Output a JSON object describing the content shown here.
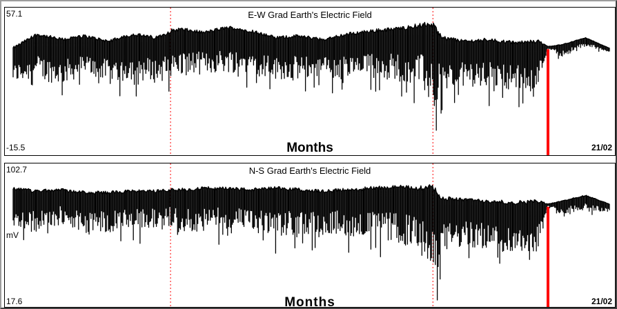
{
  "chart_data": [
    {
      "type": "line",
      "title": "E-W Grad Earth's Electric Field",
      "xlabel": "Months",
      "ylabel": "",
      "ylim": [
        -15.5,
        57.1
      ],
      "ymax_label": "57.1",
      "ymin_label": "-15.5",
      "date_label": "21/02",
      "month_dividers": [
        0.264,
        0.704
      ],
      "highlight": 0.897,
      "colors": {
        "line": "#000000",
        "divider": "#ff0000",
        "highlight": "#ff0000"
      },
      "x": [
        0.0,
        0.04,
        0.08,
        0.12,
        0.16,
        0.2,
        0.24,
        0.264,
        0.28,
        0.32,
        0.36,
        0.4,
        0.44,
        0.48,
        0.52,
        0.56,
        0.6,
        0.64,
        0.68,
        0.7,
        0.704,
        0.72,
        0.76,
        0.8,
        0.84,
        0.88,
        0.897,
        0.92,
        0.96,
        1.0
      ],
      "series": [
        {
          "upper": [
            40,
            48,
            45,
            47,
            44,
            48,
            46,
            50,
            51,
            49,
            52,
            50,
            46,
            47,
            45,
            48,
            50,
            51,
            53,
            54,
            53,
            46,
            44,
            45,
            43,
            44,
            41,
            42,
            46,
            40
          ]
        },
        {
          "lower": [
            20,
            22,
            19,
            24,
            21,
            22,
            20,
            22,
            24,
            25,
            26,
            26,
            22,
            22,
            24,
            21,
            22,
            22,
            19,
            8,
            3,
            14,
            18,
            17,
            16,
            17,
            40,
            35,
            41,
            38
          ]
        }
      ]
    },
    {
      "type": "line",
      "title": "N-S Grad Earth's Electric Field",
      "xlabel": "Months",
      "ylabel": "mV",
      "ylim": [
        17.6,
        102.7
      ],
      "ymax_label": "102.7",
      "ymin_label": "17.6",
      "date_label": "21/02",
      "month_dividers": [
        0.264,
        0.704
      ],
      "highlight": 0.897,
      "colors": {
        "line": "#000000",
        "divider": "#ff0000",
        "highlight": "#ff0000"
      },
      "x": [
        0.0,
        0.04,
        0.08,
        0.12,
        0.16,
        0.2,
        0.24,
        0.264,
        0.28,
        0.32,
        0.36,
        0.4,
        0.44,
        0.48,
        0.52,
        0.56,
        0.6,
        0.64,
        0.68,
        0.7,
        0.704,
        0.72,
        0.76,
        0.8,
        0.84,
        0.88,
        0.897,
        0.92,
        0.96,
        1.0
      ],
      "series": [
        {
          "upper": [
            93,
            91,
            92,
            90,
            90,
            91,
            91,
            92,
            92,
            93,
            93,
            92,
            93,
            92,
            91,
            92,
            93,
            94,
            93,
            95,
            93,
            86,
            85,
            84,
            83,
            84,
            82,
            84,
            88,
            82
          ]
        },
        {
          "lower": [
            66,
            62,
            67,
            62,
            62,
            64,
            65,
            67,
            63,
            62,
            65,
            62,
            58,
            60,
            62,
            60,
            58,
            55,
            50,
            34,
            24,
            48,
            52,
            50,
            47,
            49,
            80,
            75,
            78,
            76
          ]
        }
      ]
    }
  ]
}
